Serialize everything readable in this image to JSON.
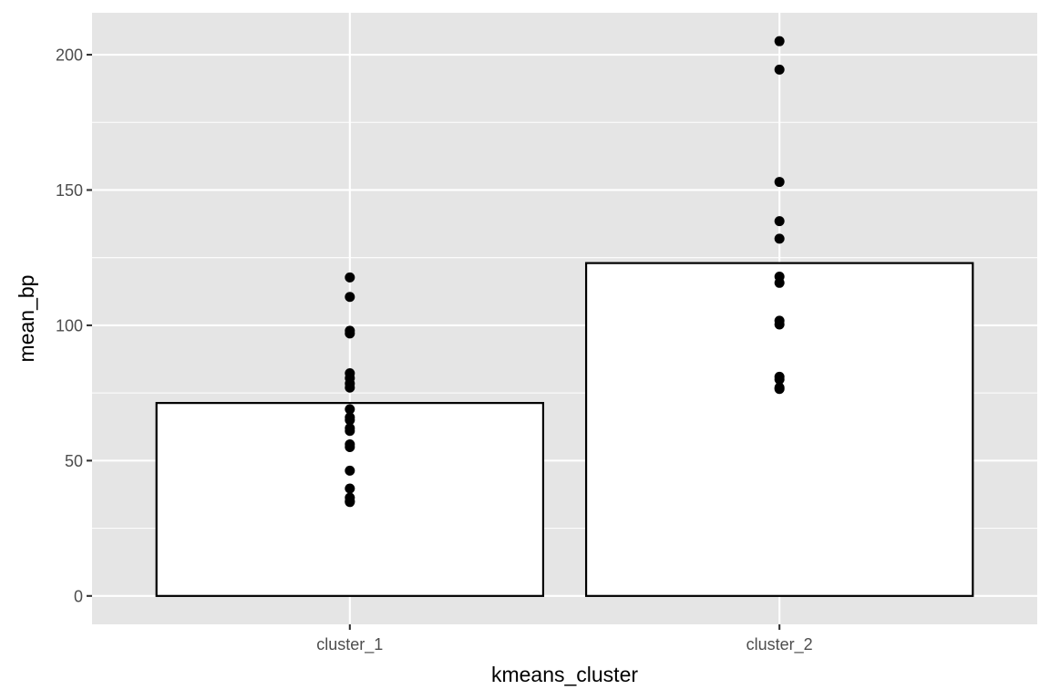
{
  "chart_data": {
    "type": "bar",
    "xlabel": "kmeans_cluster",
    "ylabel": "mean_bp",
    "categories": [
      "cluster_1",
      "cluster_2"
    ],
    "values": [
      71.3,
      123.0
    ],
    "ylim": [
      -10.5,
      215.5
    ],
    "y_ticks": [
      0,
      50,
      100,
      150,
      200
    ],
    "y_minor_ticks": [
      25,
      75,
      125,
      175
    ],
    "grid": true,
    "legend": "none",
    "bar_fill": "#ffffff",
    "bar_outline": "#000000",
    "panel_background": "#e5e5e5",
    "point_color": "#000000",
    "points": [
      {
        "category": "cluster_1",
        "values": [
          117.7,
          110.5,
          98.0,
          97.0,
          82.3,
          80.5,
          78.5,
          77.0,
          69.0,
          66.0,
          65.0,
          62.0,
          61.0,
          56.0,
          55.0,
          46.3,
          39.7,
          36.3,
          35.0,
          34.7
        ]
      },
      {
        "category": "cluster_2",
        "values": [
          205.0,
          194.5,
          153.0,
          138.5,
          132.0,
          118.0,
          115.7,
          101.7,
          100.3,
          81.0,
          80.0,
          77.0,
          76.5
        ]
      }
    ]
  }
}
